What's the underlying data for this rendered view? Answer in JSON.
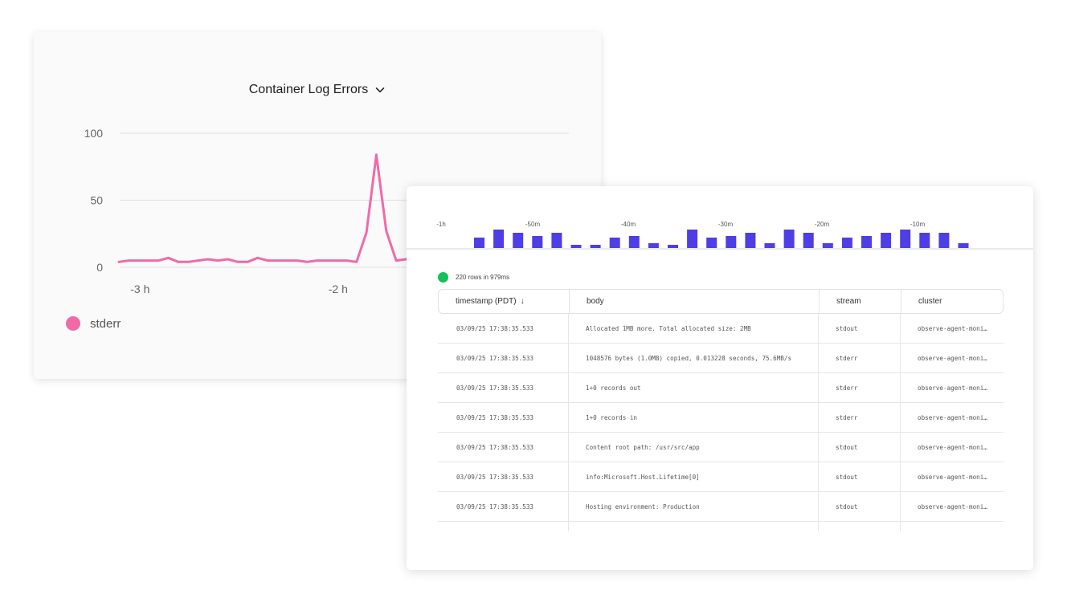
{
  "chart_data": [
    {
      "type": "line",
      "title": "Container Log Errors",
      "xlabel": "",
      "ylabel": "",
      "yticks": [
        "100",
        "50",
        "0"
      ],
      "xticks": [
        "-3 h",
        "-2 h"
      ],
      "ylim": [
        0,
        100
      ],
      "grid": true,
      "legend_position": "bottom-left",
      "series": [
        {
          "name": "stderr",
          "color": "#f06aa8",
          "x": [
            -3.05,
            -3.0,
            -2.95,
            -2.9,
            -2.85,
            -2.8,
            -2.75,
            -2.7,
            -2.65,
            -2.6,
            -2.55,
            -2.5,
            -2.45,
            -2.4,
            -2.35,
            -2.3,
            -2.25,
            -2.2,
            -2.15,
            -2.1,
            -2.05,
            -2.0,
            -1.95,
            -1.9,
            -1.85,
            -1.8,
            -1.75,
            -1.7,
            -1.65,
            -1.6,
            -1.55,
            -1.5,
            -1.45,
            -1.4,
            -1.35,
            -1.3,
            -1.25,
            -1.2
          ],
          "y": [
            4,
            5,
            5,
            5,
            5,
            7,
            4,
            4,
            5,
            6,
            5,
            6,
            4,
            4,
            7,
            5,
            5,
            5,
            5,
            4,
            5,
            5,
            5,
            5,
            4,
            26,
            84,
            27,
            5,
            6,
            6,
            5,
            5,
            5,
            4,
            4,
            5,
            5
          ]
        }
      ]
    },
    {
      "type": "bar",
      "title": "",
      "xlabel": "",
      "ylabel": "",
      "xticks": [
        "-1h",
        "-50m",
        "-40m",
        "-30m",
        "-20m",
        "-10m"
      ],
      "categories": [
        "-58m",
        "-56m",
        "-54m",
        "-52m",
        "-50m",
        "-48m",
        "-46m",
        "-44m",
        "-42m",
        "-40m",
        "-38m",
        "-36m",
        "-34m",
        "-32m",
        "-30m",
        "-28m",
        "-26m",
        "-24m",
        "-22m",
        "-20m",
        "-18m",
        "-16m",
        "-14m",
        "-12m",
        "-10m",
        "-8m",
        "-6m",
        "-4m"
      ],
      "values": [
        13,
        23,
        19,
        15,
        19,
        4,
        4,
        13,
        15,
        6,
        4,
        23,
        13,
        15,
        19,
        6,
        23,
        19,
        6,
        13,
        15,
        19,
        23,
        19,
        19,
        6,
        0,
        0
      ],
      "color": "#4d3ee6"
    }
  ],
  "chart": {
    "title": "Container Log Errors",
    "legend_label": "stderr",
    "line_color": "#f06aa8",
    "grid_color": "#e5e5e5",
    "axis_text_color": "#666666"
  },
  "logs": {
    "status_text": "220 rows in 979ms",
    "status_color": "#12c25b",
    "bar_color": "#4d3ee6",
    "columns": [
      "timestamp (PDT)",
      "body",
      "stream",
      "cluster"
    ],
    "sort_indicator": "↓",
    "rows": [
      {
        "timestamp": "03/09/25 17:38:35.533",
        "body": "Allocated 1MB more. Total allocated size: 2MB",
        "stream": "stdout",
        "cluster": "observe-agent-moni…"
      },
      {
        "timestamp": "03/09/25 17:38:35.533",
        "body": "1048576 bytes (1.0MB) copied, 0.013228 seconds, 75.6MB/s",
        "stream": "stderr",
        "cluster": "observe-agent-moni…"
      },
      {
        "timestamp": "03/09/25 17:38:35.533",
        "body": "1+0 records out",
        "stream": "stderr",
        "cluster": "observe-agent-moni…"
      },
      {
        "timestamp": "03/09/25 17:38:35.533",
        "body": "1+0 records in",
        "stream": "stderr",
        "cluster": "observe-agent-moni…"
      },
      {
        "timestamp": "03/09/25 17:38:35.533",
        "body": "Content root path: /usr/src/app",
        "stream": "stdout",
        "cluster": "observe-agent-moni…"
      },
      {
        "timestamp": "03/09/25 17:38:35.533",
        "body": "info:Microsoft.Host.Lifetime[0]",
        "stream": "stdout",
        "cluster": "observe-agent-moni…"
      },
      {
        "timestamp": "03/09/25 17:38:35.533",
        "body": "Hosting environment: Production",
        "stream": "stdout",
        "cluster": "observe-agent-moni…"
      }
    ]
  }
}
